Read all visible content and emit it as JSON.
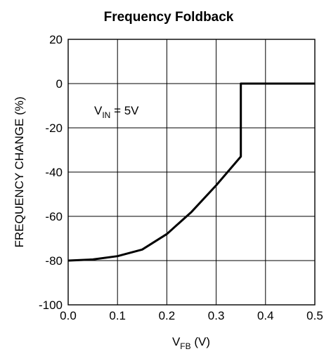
{
  "chart_data": {
    "type": "line",
    "title": "Frequency Foldback",
    "xlabel": {
      "main": "V",
      "sub": "FB",
      "unit": " (V)"
    },
    "ylabel": "FREQUENCY CHANGE (%)",
    "annotation": {
      "main": "V",
      "sub": "IN",
      "rest": " = 5V"
    },
    "xlim": [
      0.0,
      0.5
    ],
    "ylim": [
      -100,
      20
    ],
    "x_ticks": [
      "0.0",
      "0.1",
      "0.2",
      "0.3",
      "0.4",
      "0.5"
    ],
    "y_ticks": [
      "20",
      "0",
      "-20",
      "-40",
      "-60",
      "-80",
      "-100"
    ],
    "grid": true,
    "series": [
      {
        "x": [
          0.0,
          0.05,
          0.1,
          0.15,
          0.2,
          0.25,
          0.3,
          0.35,
          0.35,
          0.4,
          0.45,
          0.5
        ],
        "y": [
          -80,
          -79.5,
          -78,
          -75,
          -68,
          -58,
          -46,
          -33,
          0,
          0,
          0,
          0
        ]
      }
    ]
  }
}
